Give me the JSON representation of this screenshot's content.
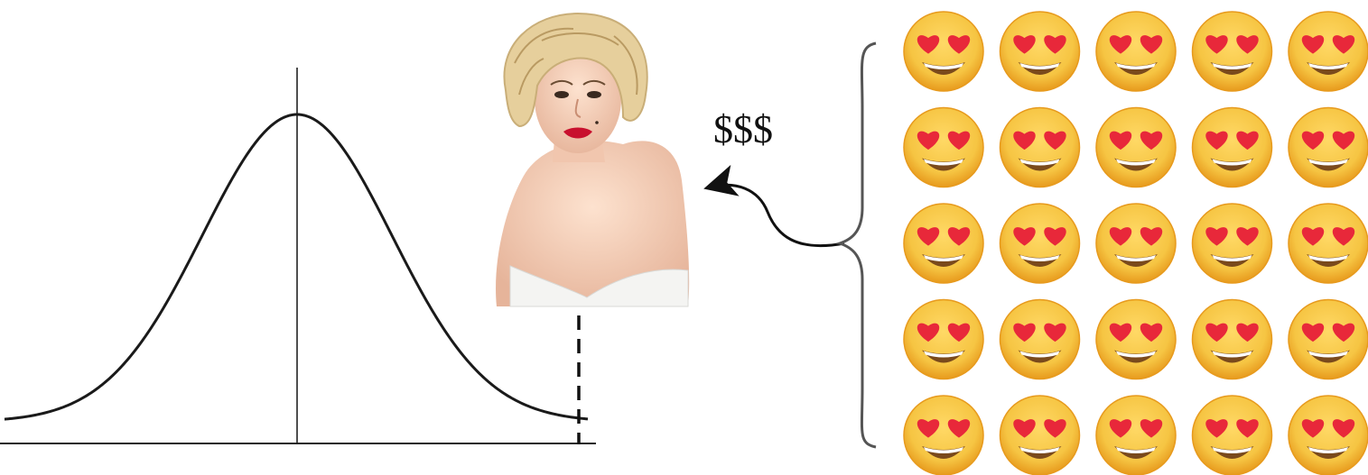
{
  "annotation": {
    "money_label": "$$$"
  },
  "portrait": {
    "subject": "celebrity-portrait"
  },
  "fans": {
    "rows": 5,
    "columns": 5,
    "icon": "smiling-face-with-heart-eyes-icon"
  },
  "colors": {
    "stroke": "#1a1a1a",
    "brace": "#555555",
    "emoji_face": "#f6c543",
    "emoji_face_edge": "#e79a1d",
    "emoji_heart": "#e8283a",
    "emoji_mouth": "#7a4a1c",
    "emoji_teeth": "#ffffff"
  }
}
